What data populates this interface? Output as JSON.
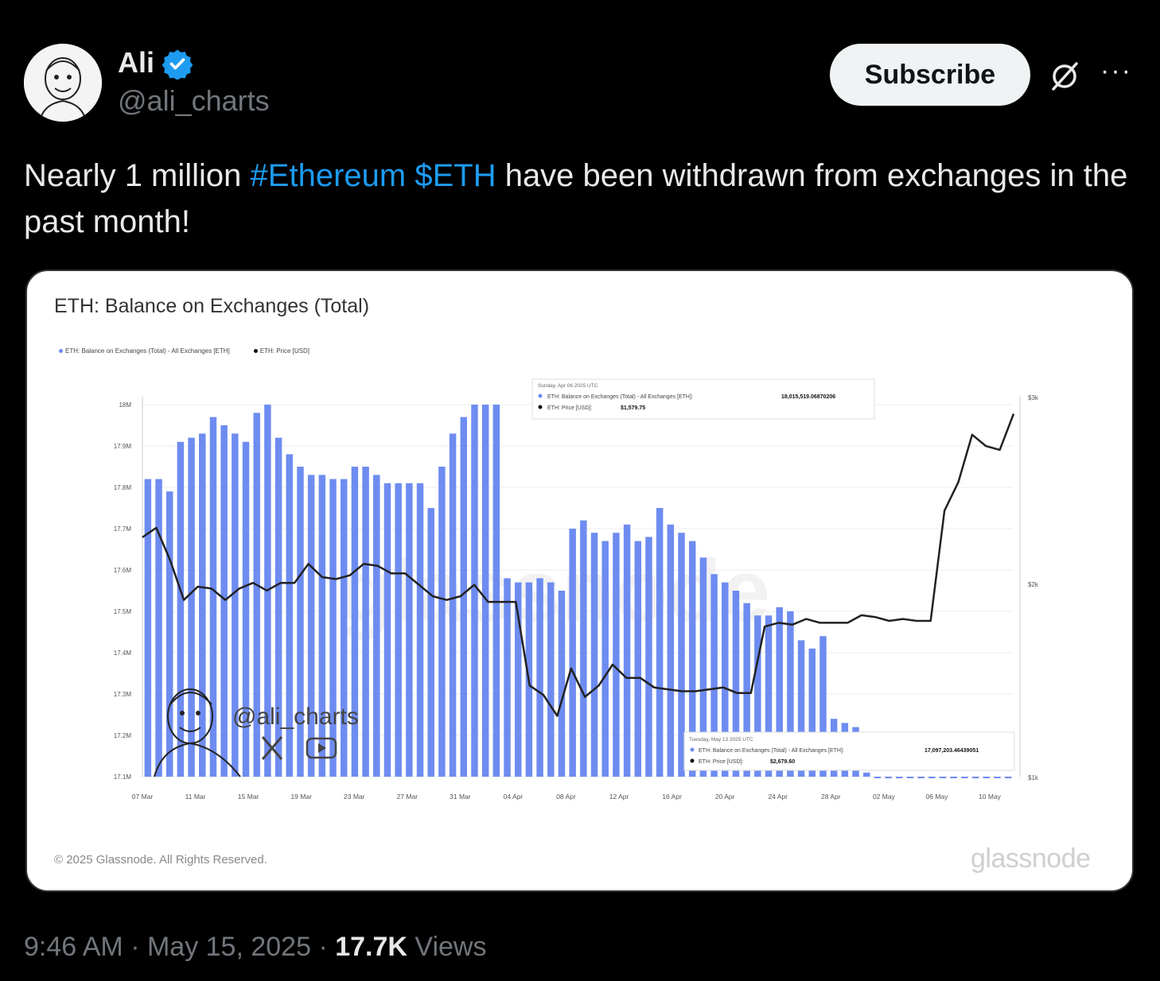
{
  "author": {
    "name": "Ali",
    "handle": "@ali_charts",
    "verified": true
  },
  "actions": {
    "subscribe_label": "Subscribe",
    "grok_icon": "grok-icon",
    "more_label": "···"
  },
  "tweet": {
    "text_before": "Nearly 1 million ",
    "hashtag": "#Ethereum",
    "space": " ",
    "cashtag": "$ETH",
    "text_after": " have been withdrawn from exchanges in the past month!"
  },
  "card": {
    "title": "ETH: Balance on Exchanges (Total)",
    "legend_balance": "ETH: Balance on Exchanges (Total) - All Exchanges [ETH]",
    "legend_price": "ETH: Price [USD]",
    "copyright": "© 2025 Glassnode. All Rights Reserved.",
    "brand": "glassnode",
    "watermark_handle": "@ali_charts",
    "tooltip_top": {
      "date": "Sunday, Apr 06 2025 UTC",
      "balance_label": "ETH: Balance on Exchanges (Total) - All Exchanges [ETH]:",
      "balance_value": "18,015,519.06870206",
      "price_label": "ETH: Price [USD]:",
      "price_value": "$1,579.75"
    },
    "tooltip_bottom": {
      "date": "Tuesday, May 13 2025 UTC",
      "balance_label": "ETH: Balance on Exchanges (Total) - All Exchanges [ETH]:",
      "balance_value": "17,097,203.46439051",
      "price_label": "ETH: Price [USD]:",
      "price_value": "$2,679.60"
    }
  },
  "chart_data": {
    "type": "bar",
    "title": "ETH: Balance on Exchanges (Total)",
    "y_ticks": [
      "18M",
      "17.9M",
      "17.8M",
      "17.7M",
      "17.6M",
      "17.5M",
      "17.4M",
      "17.3M",
      "17.2M",
      "17.1M"
    ],
    "y2_ticks": [
      "$3k",
      "$2k",
      "$1k"
    ],
    "x_ticks": [
      "07 Mar",
      "11 Mar",
      "15 Mar",
      "19 Mar",
      "23 Mar",
      "27 Mar",
      "31 Mar",
      "04 Apr",
      "08 Apr",
      "12 Apr",
      "16 Apr",
      "20 Apr",
      "24 Apr",
      "28 Apr",
      "02 May",
      "06 May",
      "10 May"
    ],
    "ylim": [
      17.1,
      18.0
    ],
    "y2lim": [
      1000,
      3000
    ],
    "colors": {
      "bar": "#6e8cf0",
      "price": "#222222"
    },
    "series": [
      {
        "name": "ETH: Balance on Exchanges (Total) - All Exchanges [ETH]",
        "unit": "M ETH",
        "values": [
          17.82,
          17.82,
          17.79,
          17.91,
          17.92,
          17.93,
          17.97,
          17.95,
          17.93,
          17.91,
          17.98,
          18.0,
          17.92,
          17.88,
          17.85,
          17.83,
          17.83,
          17.82,
          17.82,
          17.85,
          17.85,
          17.83,
          17.81,
          17.81,
          17.81,
          17.81,
          17.75,
          17.85,
          17.93,
          17.97,
          18.0,
          18.02,
          18.02,
          17.58,
          17.57,
          17.57,
          17.58,
          17.57,
          17.55,
          17.7,
          17.72,
          17.69,
          17.67,
          17.69,
          17.71,
          17.67,
          17.68,
          17.75,
          17.71,
          17.69,
          17.67,
          17.63,
          17.59,
          17.57,
          17.55,
          17.52,
          17.49,
          17.49,
          17.51,
          17.5,
          17.43,
          17.41,
          17.44,
          17.24,
          17.23,
          17.22,
          17.11,
          17.1,
          17.1,
          17.1,
          17.1,
          17.1,
          17.1,
          17.1,
          17.1,
          17.1,
          17.1,
          17.1,
          17.1,
          17.097
        ]
      },
      {
        "name": "ETH: Price [USD]",
        "unit": "USD",
        "values": [
          2260,
          2310,
          2140,
          1930,
          2000,
          1990,
          1930,
          1990,
          2020,
          1980,
          2020,
          2020,
          2120,
          2050,
          2040,
          2060,
          2120,
          2110,
          2070,
          2070,
          2010,
          1950,
          1930,
          1950,
          2010,
          1920,
          1920,
          1920,
          1480,
          1430,
          1320,
          1570,
          1420,
          1480,
          1590,
          1520,
          1520,
          1470,
          1460,
          1450,
          1450,
          1460,
          1470,
          1440,
          1440,
          1790,
          1810,
          1800,
          1830,
          1810,
          1810,
          1810,
          1850,
          1840,
          1820,
          1830,
          1820,
          1820,
          2400,
          2550,
          2800,
          2740,
          2720,
          2910
        ]
      }
    ]
  },
  "footer": {
    "time": "9:46 AM",
    "sep1": " · ",
    "date": "May 15, 2025",
    "sep2": " · ",
    "views_count": "17.7K",
    "views_label": " Views"
  }
}
